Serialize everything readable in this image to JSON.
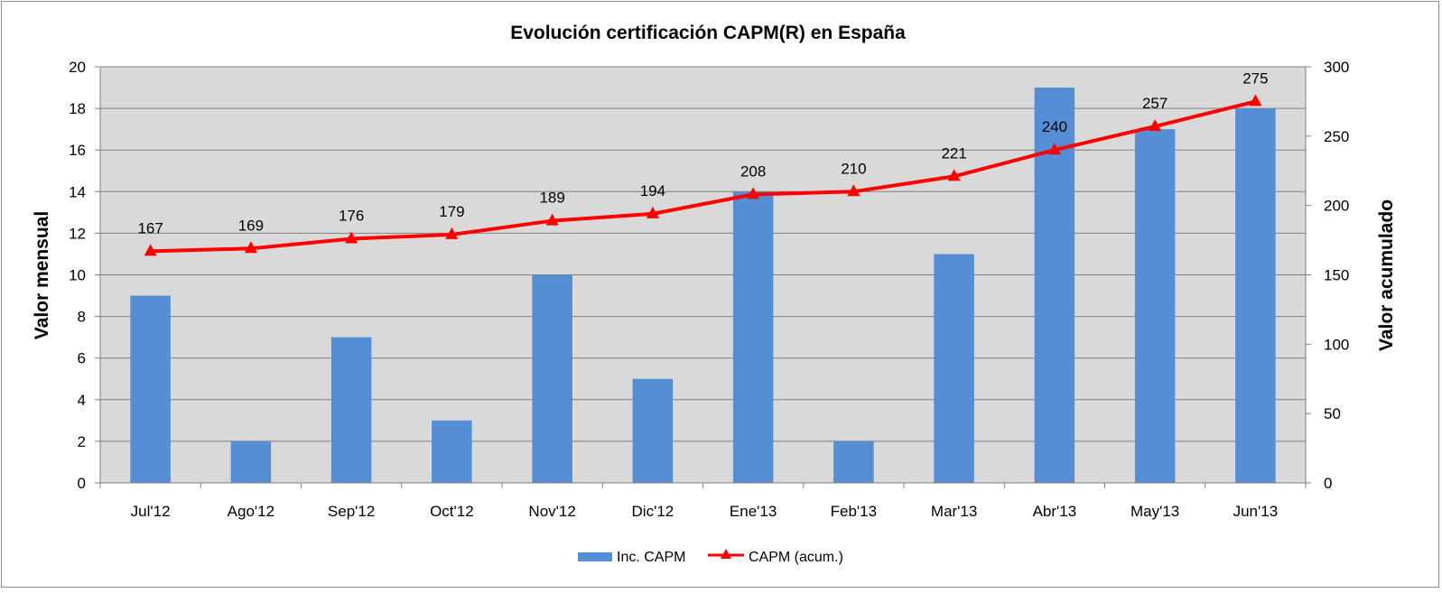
{
  "chart_data": {
    "type": "bar",
    "title": "Evolución certificación CAPM(R) en España",
    "categories": [
      "Jul'12",
      "Ago'12",
      "Sep'12",
      "Oct'12",
      "Nov'12",
      "Dic'12",
      "Ene'13",
      "Feb'13",
      "Mar'13",
      "Abr'13",
      "May'13",
      "Jun'13"
    ],
    "series": [
      {
        "name": "Inc. CAPM",
        "type": "bar",
        "axis": "left",
        "color": "#558ed5",
        "values": [
          9,
          2,
          7,
          3,
          10,
          5,
          14,
          2,
          11,
          19,
          17,
          18
        ]
      },
      {
        "name": "CAPM (acum.)",
        "type": "line",
        "axis": "right",
        "color": "#ff0000",
        "marker": "triangle",
        "values": [
          167,
          169,
          176,
          179,
          189,
          194,
          208,
          210,
          221,
          240,
          257,
          275
        ]
      }
    ],
    "y_left": {
      "label": "Valor mensual",
      "min": 0,
      "max": 20,
      "ticks": [
        0,
        2,
        4,
        6,
        8,
        10,
        12,
        14,
        16,
        18,
        20
      ]
    },
    "y_right": {
      "label": "Valor acumulado",
      "min": 0,
      "max": 300,
      "ticks": [
        0,
        50,
        100,
        150,
        200,
        250,
        300
      ]
    },
    "grid": true,
    "plot_background": "#d9d9d9",
    "legend_position": "bottom"
  }
}
